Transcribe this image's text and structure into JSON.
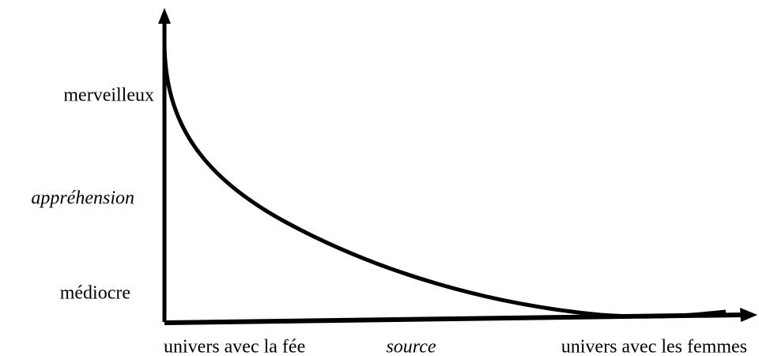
{
  "y_axis": {
    "top_label": "merveilleux",
    "title": "appréhension",
    "bottom_label": "médiocre"
  },
  "x_axis": {
    "left_label": "univers avec la fée",
    "title": "source",
    "right_label": "univers avec les femmes"
  }
}
